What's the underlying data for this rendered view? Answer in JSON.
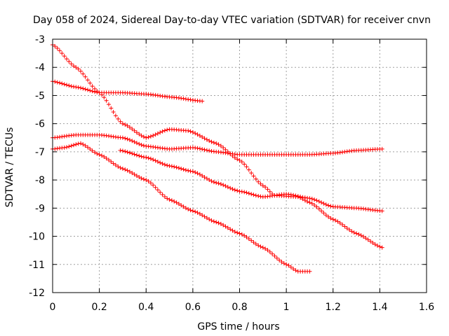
{
  "chart_data": {
    "type": "scatter",
    "title": "Day 058 of 2024, Sidereal Day-to-day VTEC variation (SDTVAR) for receiver cnvn",
    "xlabel": "GPS time / hours",
    "ylabel": "SDTVAR / TECUs",
    "xlim": [
      0,
      1.6
    ],
    "ylim": [
      -12,
      -3
    ],
    "xticks": [
      "0",
      "0.2",
      "0.4",
      "0.6",
      "0.8",
      "1",
      "1.2",
      "1.4",
      "1.6"
    ],
    "yticks": [
      "-3",
      "-4",
      "-5",
      "-6",
      "-7",
      "-8",
      "-9",
      "-10",
      "-11",
      "-12"
    ],
    "grid": true,
    "legend": "none",
    "marker": "plus",
    "color": "#ff0000",
    "series": [
      {
        "name": "S1",
        "x_start": 0.0,
        "x_end": 1.41,
        "knots": [
          [
            0.0,
            -3.2
          ],
          [
            0.1,
            -4.0
          ],
          [
            0.2,
            -4.9
          ],
          [
            0.3,
            -6.0
          ],
          [
            0.4,
            -6.5
          ],
          [
            0.5,
            -6.2
          ],
          [
            0.58,
            -6.25
          ],
          [
            0.7,
            -6.7
          ],
          [
            0.8,
            -7.3
          ],
          [
            0.9,
            -8.2
          ],
          [
            0.95,
            -8.55
          ],
          [
            1.05,
            -8.6
          ],
          [
            1.1,
            -8.8
          ],
          [
            1.2,
            -9.4
          ],
          [
            1.3,
            -9.9
          ],
          [
            1.41,
            -10.4
          ]
        ]
      },
      {
        "name": "S2",
        "x_start": 0.0,
        "x_end": 0.64,
        "knots": [
          [
            0.0,
            -4.5
          ],
          [
            0.1,
            -4.7
          ],
          [
            0.2,
            -4.9
          ],
          [
            0.3,
            -4.9
          ],
          [
            0.4,
            -4.95
          ],
          [
            0.5,
            -5.05
          ],
          [
            0.64,
            -5.2
          ]
        ]
      },
      {
        "name": "S3",
        "x_start": 0.0,
        "x_end": 1.41,
        "knots": [
          [
            0.0,
            -6.5
          ],
          [
            0.1,
            -6.4
          ],
          [
            0.2,
            -6.4
          ],
          [
            0.3,
            -6.5
          ],
          [
            0.4,
            -6.8
          ],
          [
            0.5,
            -6.9
          ],
          [
            0.6,
            -6.85
          ],
          [
            0.7,
            -7.0
          ],
          [
            0.8,
            -7.1
          ],
          [
            0.9,
            -7.1
          ],
          [
            1.0,
            -7.1
          ],
          [
            1.1,
            -7.1
          ],
          [
            1.2,
            -7.05
          ],
          [
            1.3,
            -6.95
          ],
          [
            1.41,
            -6.9
          ]
        ]
      },
      {
        "name": "S4",
        "x_start": 0.0,
        "x_end": 1.1,
        "knots": [
          [
            0.0,
            -6.9
          ],
          [
            0.05,
            -6.85
          ],
          [
            0.12,
            -6.7
          ],
          [
            0.2,
            -7.1
          ],
          [
            0.3,
            -7.6
          ],
          [
            0.4,
            -8.0
          ],
          [
            0.5,
            -8.7
          ],
          [
            0.6,
            -9.1
          ],
          [
            0.7,
            -9.5
          ],
          [
            0.8,
            -9.9
          ],
          [
            0.9,
            -10.4
          ],
          [
            1.0,
            -11.0
          ],
          [
            1.05,
            -11.25
          ],
          [
            1.1,
            -11.25
          ]
        ]
      },
      {
        "name": "S5",
        "x_start": 0.29,
        "x_end": 1.41,
        "knots": [
          [
            0.29,
            -6.95
          ],
          [
            0.4,
            -7.2
          ],
          [
            0.5,
            -7.5
          ],
          [
            0.6,
            -7.7
          ],
          [
            0.7,
            -8.1
          ],
          [
            0.8,
            -8.4
          ],
          [
            0.9,
            -8.6
          ],
          [
            1.0,
            -8.5
          ],
          [
            1.1,
            -8.65
          ],
          [
            1.2,
            -8.95
          ],
          [
            1.3,
            -9.0
          ],
          [
            1.41,
            -9.1
          ]
        ]
      }
    ]
  }
}
